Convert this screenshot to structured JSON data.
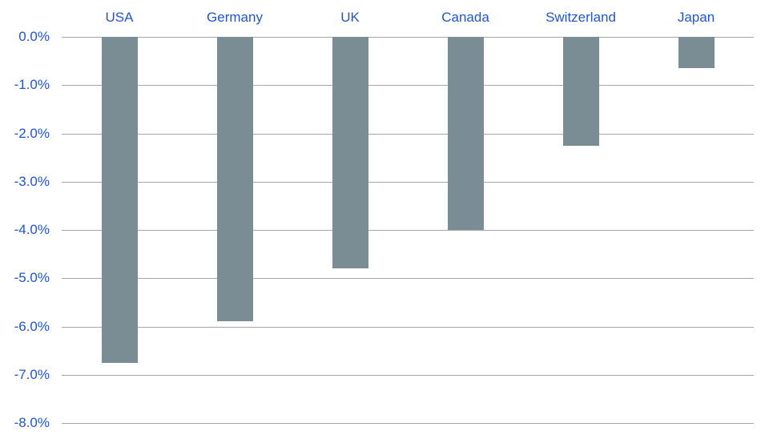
{
  "chart_data": {
    "type": "bar",
    "categories": [
      "USA",
      "Germany",
      "UK",
      "Canada",
      "Switzerland",
      "Japan"
    ],
    "values": [
      -6.75,
      -5.9,
      -4.8,
      -4.0,
      -2.25,
      -0.65
    ],
    "unit": "%",
    "title": "",
    "xlabel": "",
    "ylabel": "",
    "ylim": [
      0,
      -8
    ],
    "yticks": [
      0,
      -1,
      -2,
      -3,
      -4,
      -5,
      -6,
      -7,
      -8
    ],
    "ytick_labels": [
      "0.0%",
      "-1.0%",
      "-2.0%",
      "-3.0%",
      "-4.0%",
      "-5.0%",
      "-6.0%",
      "-7.0%",
      "-8.0%"
    ],
    "grid": true,
    "legend_position": "none",
    "category_labels_position": "top",
    "colors": {
      "bar": "#7a8d94",
      "category_label": "#2155c8",
      "tick_label": "#2155c8",
      "gridline": "#a6a6a6",
      "background": "#ffffff"
    }
  }
}
